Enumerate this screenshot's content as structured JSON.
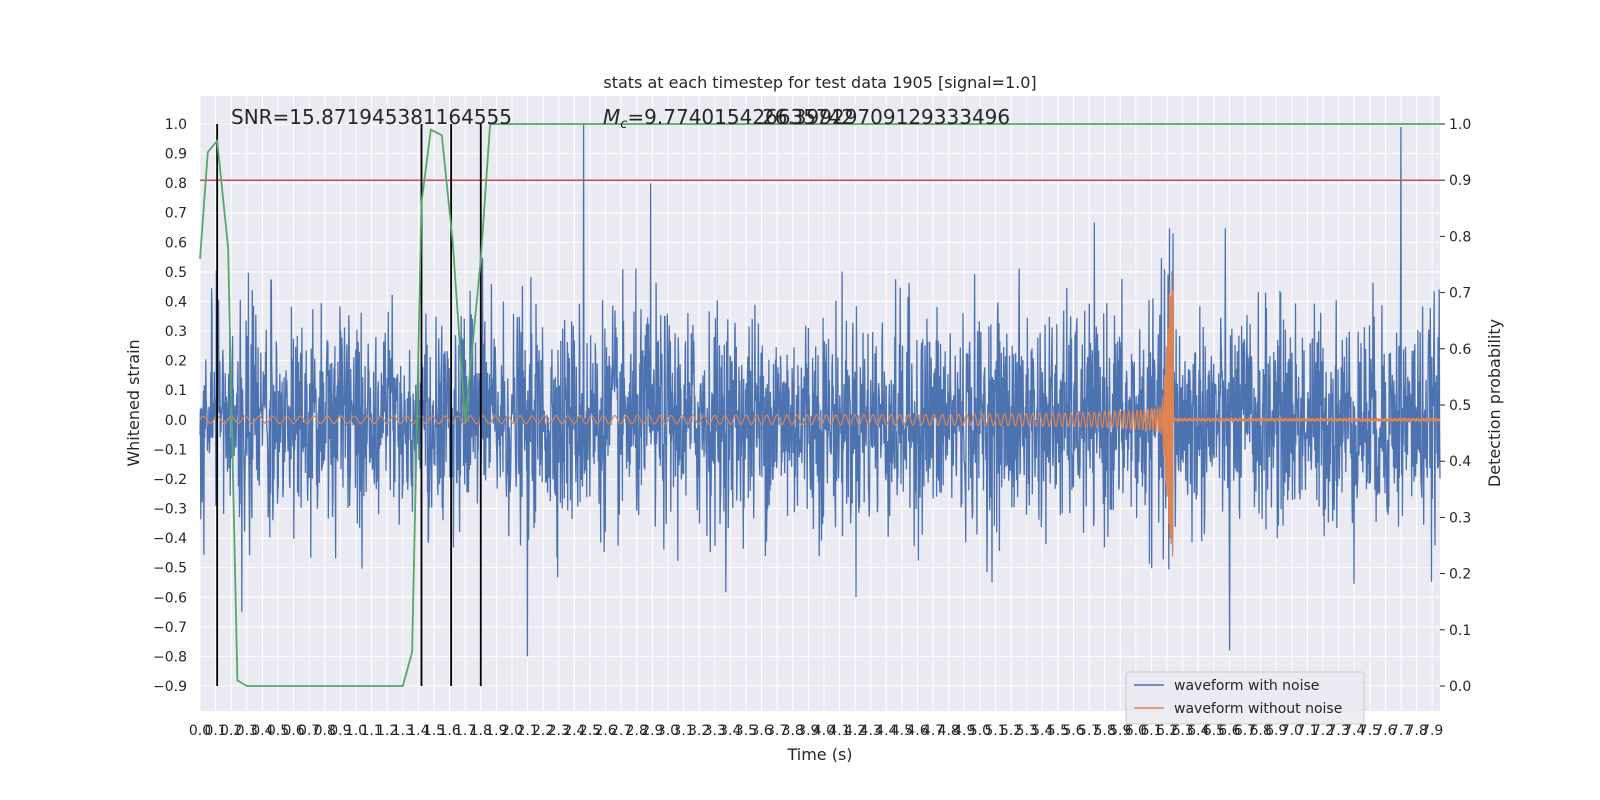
{
  "chart_data": {
    "type": "line",
    "title": "stats at each timestep for test data 1905 [signal=1.0]",
    "xlabel": "Time (s)",
    "ylabel": "Whitened strain",
    "y2label": "Detection probability",
    "xlim": [
      0.0,
      7.95
    ],
    "ylim": [
      -0.93,
      1.05
    ],
    "y2lim": [
      -0.05,
      1.03
    ],
    "x_ticks": [
      "0.0",
      "0.1",
      "0.2",
      "0.3",
      "0.4",
      "0.5",
      "0.6",
      "0.7",
      "0.8",
      "0.9",
      "1.0",
      "1.1",
      "1.2",
      "1.3",
      "1.4",
      "1.5",
      "1.6",
      "1.7",
      "1.8",
      "1.9",
      "2.0",
      "2.1",
      "2.2",
      "2.3",
      "2.4",
      "2.5",
      "2.6",
      "2.7",
      "2.8",
      "2.9",
      "3.0",
      "3.1",
      "3.2",
      "3.3",
      "3.4",
      "3.5",
      "3.6",
      "3.7",
      "3.8",
      "3.9",
      "4.0",
      "4.1",
      "4.2",
      "4.3",
      "4.4",
      "4.5",
      "4.6",
      "4.7",
      "4.8",
      "4.9",
      "5.0",
      "5.1",
      "5.2",
      "5.3",
      "5.4",
      "5.5",
      "5.6",
      "5.7",
      "5.8",
      "5.9",
      "6.0",
      "6.1",
      "6.2",
      "6.3",
      "6.4",
      "6.5",
      "6.6",
      "6.7",
      "6.8",
      "6.9",
      "7.0",
      "7.1",
      "7.2",
      "7.3",
      "7.4",
      "7.5",
      "7.6",
      "7.7",
      "7.8",
      "7.9"
    ],
    "y_ticks": [
      "1.0",
      "0.9",
      "0.8",
      "0.7",
      "0.6",
      "0.5",
      "0.4",
      "0.3",
      "0.2",
      "0.1",
      "0.0",
      "−0.1",
      "−0.2",
      "−0.3",
      "−0.4",
      "−0.5",
      "−0.6",
      "−0.7",
      "−0.8",
      "−0.9"
    ],
    "y2_ticks": [
      "1.0",
      "0.9",
      "0.8",
      "0.7",
      "0.6",
      "0.5",
      "0.4",
      "0.3",
      "0.2",
      "0.1",
      "0.0"
    ],
    "annotations": {
      "snr": "SNR=15.871945381164555",
      "mc_symbol": "M",
      "mc_sub": "c",
      "mc_value": "=9.774015426635742",
      "mc_overlap": "26.39929709129333496"
    },
    "threshold": 0.9,
    "vertical_markers": [
      0.11,
      1.42,
      1.61,
      1.8
    ],
    "detection_probability": {
      "x": [
        0.0,
        0.05,
        0.11,
        0.18,
        0.24,
        0.3,
        1.0,
        1.3,
        1.36,
        1.42,
        1.48,
        1.55,
        1.62,
        1.7,
        1.8,
        1.86,
        7.95
      ],
      "y": [
        0.76,
        0.95,
        0.97,
        0.78,
        0.01,
        0.0,
        0.0,
        0.0,
        0.06,
        0.86,
        0.99,
        0.98,
        0.79,
        0.47,
        0.76,
        1.0,
        1.0
      ]
    },
    "noisy_spikes": [
      {
        "x": 2.46,
        "y": 1.0
      },
      {
        "x": 2.89,
        "y": 0.8
      },
      {
        "x": 7.7,
        "y": 0.99
      },
      {
        "x": 2.1,
        "y": -0.8
      },
      {
        "x": 6.6,
        "y": -0.78
      }
    ],
    "merger_time": 6.22,
    "series": [
      {
        "name": "waveform with noise",
        "color": "#4c72b0",
        "noise_std": 0.18
      },
      {
        "name": "waveform without noise",
        "color": "#dd8452",
        "peak": 0.43,
        "trough": -0.42
      }
    ],
    "threshold_color": "#c44e52",
    "probability_color": "#55a868",
    "legend_position": "lower-right"
  }
}
